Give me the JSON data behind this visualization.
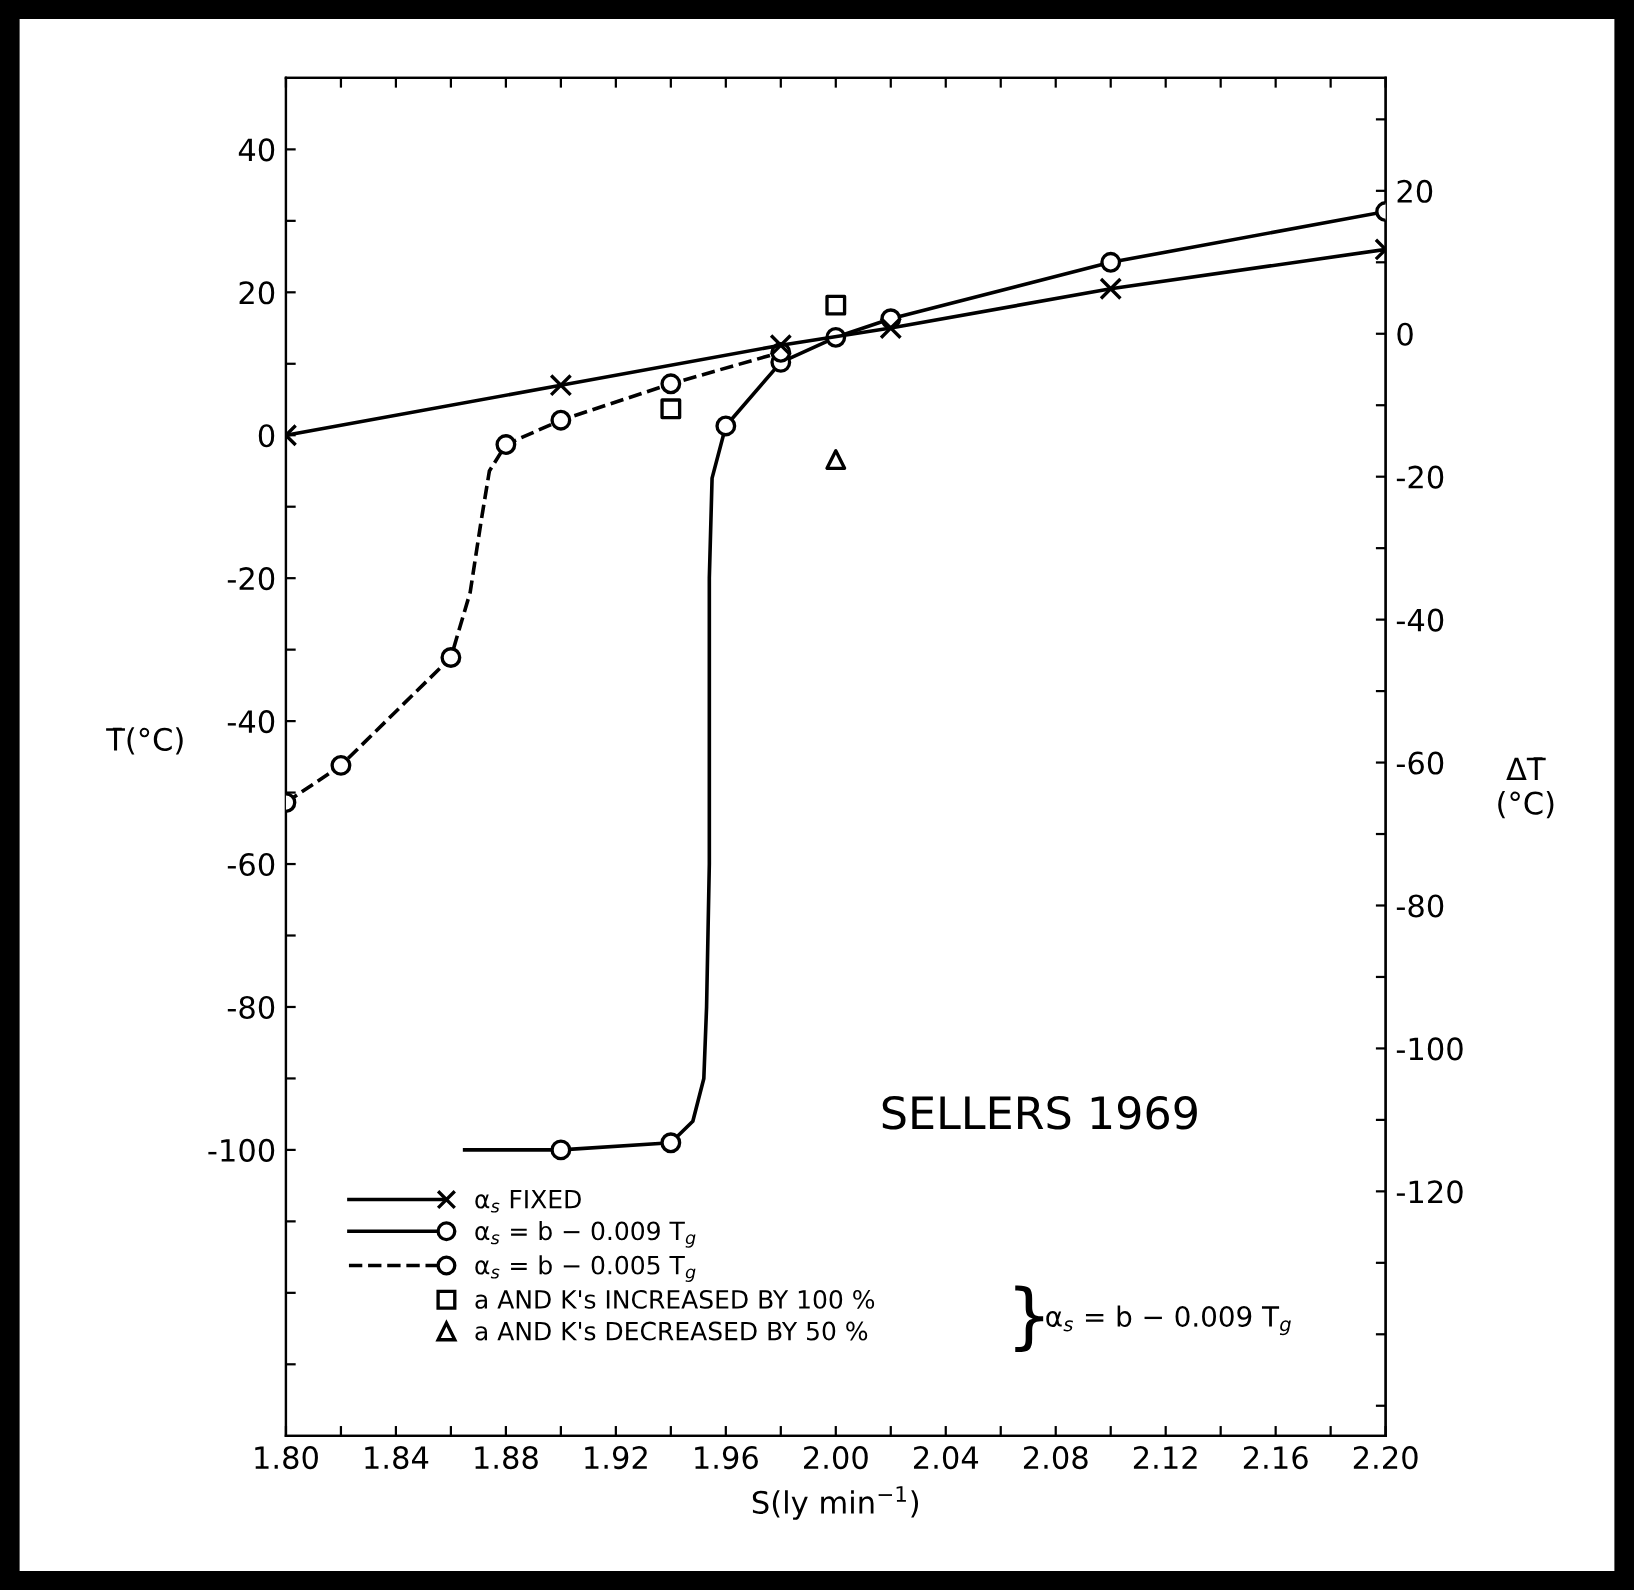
{
  "chart_data": {
    "type": "line",
    "xlabel": "S(ly min$^{−1}$)",
    "ylabel": "T̄(°C)",
    "y2label": "ΔT̄\n(°C)",
    "xlim": [
      1.8,
      2.2
    ],
    "xticks": [
      {
        "value": 1.8,
        "label": "1.80"
      },
      {
        "value": 1.82,
        "label": null
      },
      {
        "value": 1.84,
        "label": "1.84"
      },
      {
        "value": 1.86,
        "label": null
      },
      {
        "value": 1.88,
        "label": "1.88"
      },
      {
        "value": 1.9,
        "label": null
      },
      {
        "value": 1.92,
        "label": "1.92"
      },
      {
        "value": 1.94,
        "label": null
      },
      {
        "value": 1.96,
        "label": "1.96"
      },
      {
        "value": 1.98,
        "label": null
      },
      {
        "value": 2.0,
        "label": "2.00"
      },
      {
        "value": 2.02,
        "label": null
      },
      {
        "value": 2.04,
        "label": "2.04"
      },
      {
        "value": 2.06,
        "label": null
      },
      {
        "value": 2.08,
        "label": "2.08"
      },
      {
        "value": 2.1,
        "label": null
      },
      {
        "value": 2.12,
        "label": "2.12"
      },
      {
        "value": 2.14,
        "label": null
      },
      {
        "value": 2.16,
        "label": "2.16"
      },
      {
        "value": 2.18,
        "label": null
      },
      {
        "value": 2.2,
        "label": "2.20"
      }
    ],
    "ylim": [
      -140,
      50
    ],
    "yticks": [
      {
        "value": -130,
        "label": null
      },
      {
        "value": -120,
        "label": null
      },
      {
        "value": -110,
        "label": null
      },
      -100,
      {
        "value": -90,
        "label": null
      },
      -80,
      {
        "value": -70,
        "label": null
      },
      -60,
      {
        "value": -50,
        "label": null
      },
      -40,
      {
        "value": -30,
        "label": null
      },
      -20,
      {
        "value": -10,
        "label": null
      },
      0,
      {
        "value": 10,
        "label": null
      },
      20,
      {
        "value": 30,
        "label": null
      },
      40
    ],
    "y2lim": [
      -154.2,
      35.8
    ],
    "y2ticks": [
      {
        "value": -150,
        "label": null
      },
      {
        "value": -140,
        "label": null
      },
      {
        "value": -130,
        "label": null
      },
      -120,
      {
        "value": -110,
        "label": null
      },
      -100,
      {
        "value": -90,
        "label": null
      },
      -80,
      {
        "value": -70,
        "label": null
      },
      -60,
      {
        "value": -50,
        "label": null
      },
      -40,
      {
        "value": -30,
        "label": null
      },
      -20,
      {
        "value": -10,
        "label": null
      },
      0,
      {
        "value": 10,
        "label": null
      },
      20,
      {
        "value": 30,
        "label": null
      }
    ],
    "legend": "bottom left",
    "grid": false,
    "series": [
      {
        "name": "α$_{s}$ FIXED",
        "color": "#000000",
        "marker": "cross",
        "line_style": "solid",
        "x": [
          1.8,
          1.9,
          1.98,
          2.02,
          2.1,
          2.2
        ],
        "values": [
          0,
          7,
          12.6,
          15,
          20.5,
          26
        ]
      },
      {
        "name": "α$_{s}$ = b − 0.009 T$_{g}$",
        "color": "#000000",
        "marker": "none",
        "line_style": "solid",
        "x": [
          1.865,
          1.9,
          1.94,
          1.948,
          1.952,
          1.953,
          1.954,
          1.954,
          1.955,
          1.96,
          1.98,
          2.0,
          2.02,
          2.1,
          2.2
        ],
        "values": [
          -100,
          -100,
          -99,
          -96,
          -90,
          -80,
          -60,
          -20,
          -6,
          1.3,
          10.2,
          13.7,
          16.3,
          24.2,
          31.3
        ]
      },
      {
        "type": "scatter",
        "color": "#000000",
        "marker": "circle",
        "x": [
          1.9,
          1.94,
          1.96,
          1.98,
          2.0,
          2.02,
          2.1,
          2.2
        ],
        "values": [
          -100,
          -99,
          1.3,
          10.2,
          13.7,
          16.3,
          24.2,
          31.3
        ]
      },
      {
        "name": "α$_{s}$ = b − 0.005 T$_{g}$",
        "color": "#000000",
        "marker": "none",
        "line_style": "dashed",
        "x": [
          1.8,
          1.82,
          1.86,
          1.867,
          1.871,
          1.874,
          1.88,
          1.9,
          1.94,
          1.98
        ],
        "values": [
          -51.4,
          -46.2,
          -31.1,
          -22,
          -12,
          -5,
          -1.3,
          2.1,
          7.2,
          11.6
        ]
      },
      {
        "type": "scatter",
        "color": "#000000",
        "marker": "circle",
        "x": [
          1.8,
          1.82,
          1.86,
          1.88,
          1.9,
          1.94,
          1.98
        ],
        "values": [
          -51.4,
          -46.2,
          -31.1,
          -1.3,
          2.1,
          7.2,
          11.6
        ]
      },
      {
        "name": "a AND K's INCREASED BY 100 %",
        "type": "scatter",
        "color": "#000000",
        "marker": "square",
        "x": [
          1.94,
          2.0
        ],
        "values": [
          3.7,
          18.2
        ]
      },
      {
        "name": "a AND K's DECREASED BY 50 %",
        "type": "scatter",
        "color": "#000000",
        "marker": "triangle",
        "x": [
          2.0
        ],
        "values": [
          -3.4
        ]
      }
    ],
    "annotations": [
      "}",
      "α$_{s}$ = b − 0.009 T$_{g}$",
      "SELLERS 1969"
    ]
  }
}
